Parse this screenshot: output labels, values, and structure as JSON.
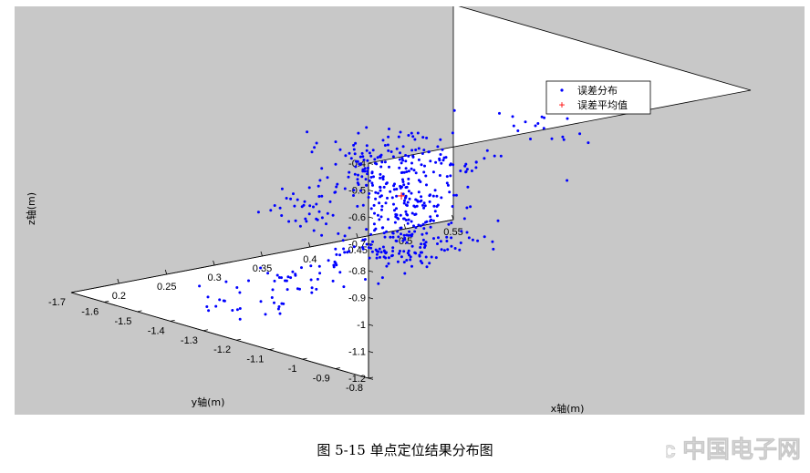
{
  "caption": "图 5-15  单点定位结果分布图",
  "watermark": {
    "text": "21ic 中国电子网",
    "color": "#d0d0d0"
  },
  "chart_data": {
    "type": "scatter",
    "projection": "3d",
    "background": "#c8c8c8",
    "box_face_color": "#ffffff",
    "grid": false,
    "legend_position": "top-right",
    "title": "",
    "xlabel": "x轴(m)",
    "ylabel": "y轴(m)",
    "zlabel": "z轴(m)",
    "xlim": [
      0.15,
      0.55
    ],
    "ylim": [
      -1.7,
      -0.8
    ],
    "zlim": [
      -1.2,
      -0.4
    ],
    "x_ticks": [
      "0.2",
      "0.25",
      "0.3",
      "0.35",
      "0.4",
      "0.45",
      "0.5",
      "0.55"
    ],
    "y_ticks": [
      "-0.8",
      "-0.9",
      "-1",
      "-1.1",
      "-1.2",
      "-1.3",
      "-1.4",
      "-1.5",
      "-1.6",
      "-1.7"
    ],
    "z_ticks": [
      "-0.4",
      "-0.5",
      "-0.6",
      "-0.7",
      "-0.8",
      "-0.9",
      "-1",
      "-1.1",
      "-1.2"
    ],
    "series": [
      {
        "name": "误差分布",
        "marker": "dot",
        "color": "#0000ff",
        "note": "Approximately 580 scattered points; positions estimated from the image.",
        "clusters": [
          {
            "x": 0.16,
            "y": -1.02,
            "z": -0.66,
            "n": 35,
            "sx": 0.012,
            "sy": 0.05,
            "sz": 0.04
          },
          {
            "x": 0.22,
            "y": -1.04,
            "z": -0.58,
            "n": 45,
            "sx": 0.015,
            "sy": 0.06,
            "sz": 0.05
          },
          {
            "x": 0.27,
            "y": -1.12,
            "z": -0.62,
            "n": 55,
            "sx": 0.02,
            "sy": 0.06,
            "sz": 0.05
          },
          {
            "x": 0.31,
            "y": -1.16,
            "z": -0.58,
            "n": 45,
            "sx": 0.02,
            "sy": 0.06,
            "sz": 0.05
          },
          {
            "x": 0.33,
            "y": -1.2,
            "z": -0.79,
            "n": 55,
            "sx": 0.015,
            "sy": 0.05,
            "sz": 0.05
          },
          {
            "x": 0.38,
            "y": -1.25,
            "z": -0.72,
            "n": 40,
            "sx": 0.02,
            "sy": 0.06,
            "sz": 0.04
          },
          {
            "x": 0.44,
            "y": -1.1,
            "z": -0.56,
            "n": 25,
            "sx": 0.02,
            "sy": 0.06,
            "sz": 0.06
          },
          {
            "x": 0.41,
            "y": -1.32,
            "z": -0.91,
            "n": 20,
            "sx": 0.02,
            "sy": 0.05,
            "sz": 0.03
          },
          {
            "x": 0.37,
            "y": -1.35,
            "z": -0.97,
            "n": 45,
            "sx": 0.015,
            "sy": 0.05,
            "sz": 0.05
          },
          {
            "x": 0.42,
            "y": -1.45,
            "z": -1.08,
            "n": 50,
            "sx": 0.02,
            "sy": 0.05,
            "sz": 0.05
          },
          {
            "x": 0.43,
            "y": -1.54,
            "z": -1.2,
            "n": 65,
            "sx": 0.015,
            "sy": 0.05,
            "sz": 0.04
          },
          {
            "x": 0.49,
            "y": -1.52,
            "z": -1.2,
            "n": 20,
            "sx": 0.02,
            "sy": 0.05,
            "sz": 0.03
          },
          {
            "x": 0.31,
            "y": -1.5,
            "z": -1.2,
            "n": 25,
            "sx": 0.02,
            "sy": 0.04,
            "sz": 0.03
          },
          {
            "x": 0.23,
            "y": -1.4,
            "z": -1.2,
            "n": 25,
            "sx": 0.02,
            "sy": 0.05,
            "sz": 0.03
          },
          {
            "x": 0.32,
            "y": -1.4,
            "z": -1.13,
            "n": 15,
            "sx": 0.02,
            "sy": 0.05,
            "sz": 0.04
          }
        ]
      },
      {
        "name": "误差平均值",
        "marker": "plus",
        "color": "#ff0000",
        "points": [
          {
            "x": 0.34,
            "y": -1.25,
            "z": -0.81
          }
        ]
      }
    ]
  }
}
